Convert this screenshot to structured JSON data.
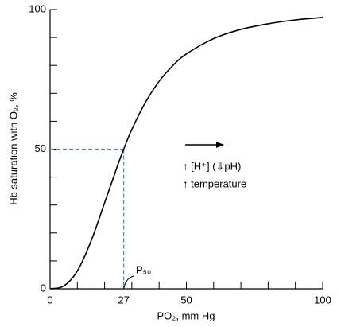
{
  "chart_data": {
    "type": "line",
    "xlabel": "PO₂, mm Hg",
    "ylabel": "Hb saturation with O₂, %",
    "annotations": [
      "P₅₀",
      "↑ [H⁺] (⇓pH)",
      "↑ temperature"
    ],
    "x": [
      0,
      5,
      10,
      15,
      20,
      25,
      27,
      30,
      35,
      40,
      45,
      50,
      60,
      70,
      80,
      90,
      100
    ],
    "series": [
      {
        "name": "Hb saturation",
        "color": "#000000",
        "values": [
          0,
          1.0,
          6.4,
          17.0,
          30.8,
          44.8,
          50,
          57.1,
          66.8,
          74.3,
          79.9,
          84.1,
          89.6,
          92.9,
          94.9,
          96.3,
          97.2
        ]
      }
    ],
    "reference_color": "#2a9fd6",
    "xlim": [
      0,
      100
    ],
    "ylim": [
      0,
      100
    ],
    "xticks": [
      0,
      27,
      50,
      100
    ],
    "yticks": [
      0,
      50,
      100
    ],
    "x_minor_ticks": [
      10,
      20,
      30,
      40,
      60,
      70,
      80,
      90
    ],
    "y_minor_ticks": [
      10,
      20,
      30,
      40,
      60,
      70,
      80,
      90
    ]
  }
}
